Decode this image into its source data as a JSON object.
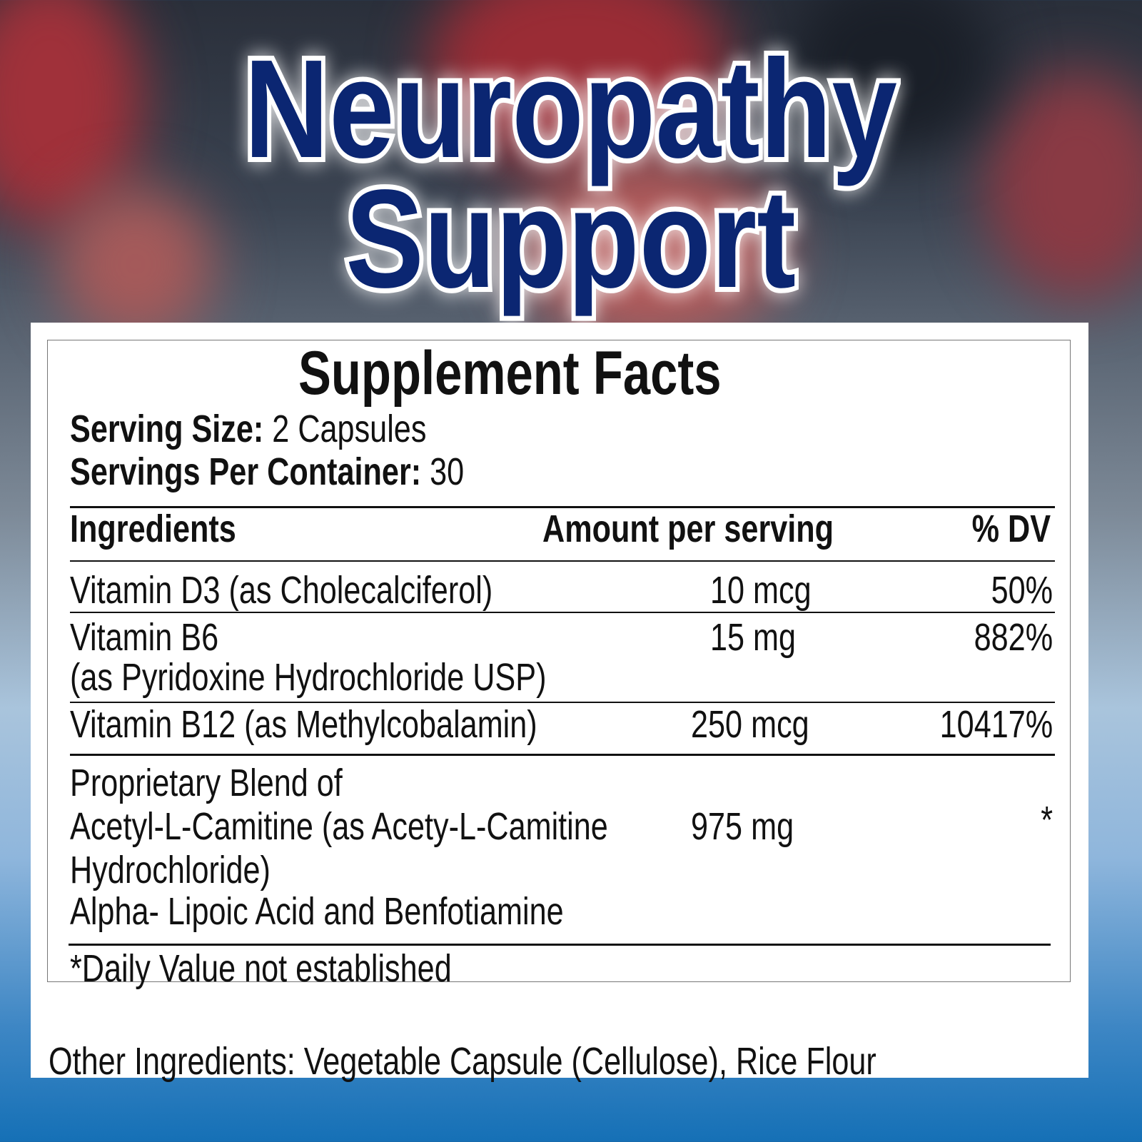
{
  "header": {
    "title_line1": "Neuropathy",
    "title_line2": "Support"
  },
  "colors": {
    "title": "#0b2672",
    "panel": "#ffffff",
    "background_bottom": "#1570b6"
  },
  "facts": {
    "title": "Supplement Facts",
    "serving_size_label": "Serving Size:",
    "serving_size_value": " 2 Capsules",
    "servings_label": "Servings Per Container:",
    "servings_value": " 30",
    "columns": [
      "Ingredients",
      "Amount per serving",
      "% DV"
    ],
    "rows": [
      {
        "name": "Vitamin D3 (as Cholecalciferol)",
        "amount": "10 mcg",
        "dv": "50%"
      },
      {
        "name": "Vitamin B6",
        "name2": "(as Pyridoxine Hydrochloride USP)",
        "amount": "15 mg",
        "dv": "882%"
      },
      {
        "name": "Vitamin B12 (as Methylcobalamin)",
        "amount": "250 mcg",
        "dv": "10417%"
      }
    ],
    "blend": {
      "lines": [
        "Proprietary Blend of",
        "Acetyl-L-Camitine (as Acety-L-Camitine",
        "Hydrochloride)",
        "Alpha- Lipoic Acid and Benfotiamine"
      ],
      "amount": "975 mg",
      "dv": "*"
    },
    "footnote": "*Daily Value not established"
  },
  "other_ingredients": "Other Ingredients: Vegetable Capsule (Cellulose), Rice Flour"
}
